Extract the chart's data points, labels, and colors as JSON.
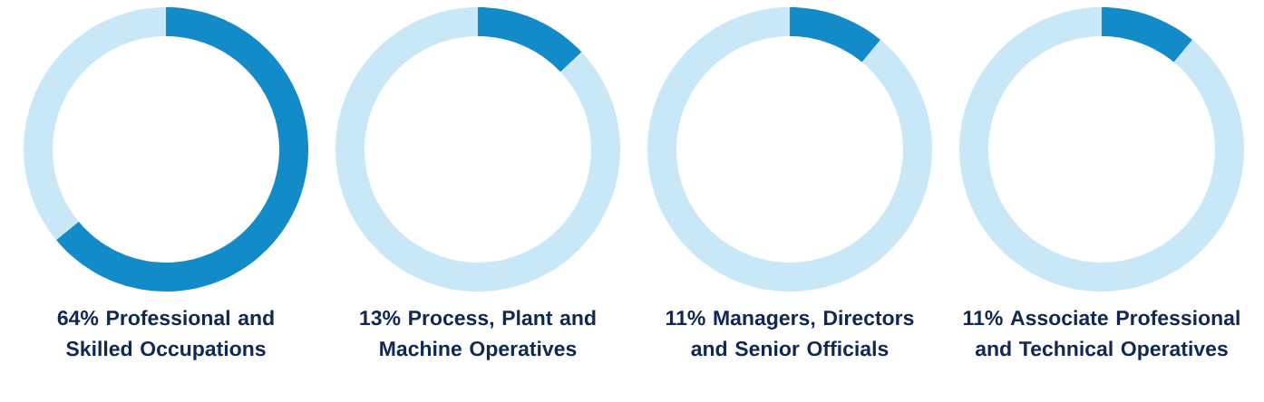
{
  "chart_data": [
    {
      "type": "donut",
      "title": "64% Professional and Skilled Occupations",
      "categories": [
        null,
        null
      ],
      "values": [
        64,
        36
      ],
      "colors": [
        "#128bc8",
        "#c8e8f7"
      ]
    },
    {
      "type": "donut",
      "title": "13% Process, Plant and Machine Operatives",
      "categories": [
        null,
        null
      ],
      "values": [
        13,
        87
      ],
      "colors": [
        "#128bc8",
        "#c8e8f7"
      ]
    },
    {
      "type": "donut",
      "title": "11% Managers, Directors and Senior Officials",
      "categories": [
        null,
        null
      ],
      "values": [
        11,
        89
      ],
      "colors": [
        "#128bc8",
        "#c8e8f7"
      ]
    },
    {
      "type": "donut",
      "title": "11% Associate Professional and Technical Operatives",
      "categories": [
        null,
        null
      ],
      "values": [
        11,
        89
      ],
      "colors": [
        "#128bc8",
        "#c8e8f7"
      ]
    }
  ]
}
